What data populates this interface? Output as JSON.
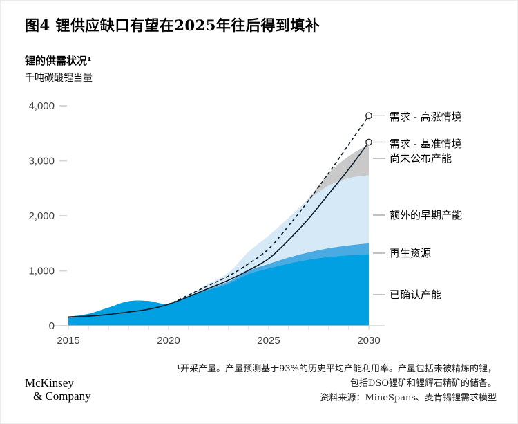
{
  "title": "图4 锂供应缺口有望在2025年往后得到填补",
  "subtitle": "锂的供需状况¹",
  "unit_label": "千吨碳酸锂当量",
  "chart_data": {
    "type": "area",
    "title": "锂的供需状况",
    "xlabel": "",
    "ylabel": "千吨碳酸锂当量",
    "xlim": [
      2015,
      2030
    ],
    "ylim": [
      0,
      4000
    ],
    "grid": false,
    "legend_position": "right",
    "x": [
      2015,
      2016,
      2017,
      2018,
      2019,
      2020,
      2021,
      2022,
      2023,
      2024,
      2025,
      2026,
      2027,
      2028,
      2029,
      2030
    ],
    "x_ticks": [
      2015,
      2020,
      2025,
      2030
    ],
    "y_ticks": [
      {
        "v": 0,
        "label": "0"
      },
      {
        "v": 1000,
        "label": "1,000"
      },
      {
        "v": 2000,
        "label": "2,000"
      },
      {
        "v": 3000,
        "label": "3,000"
      },
      {
        "v": 4000,
        "label": "4,000"
      }
    ],
    "series": [
      {
        "name": "已确认产能",
        "key": "confirmed-capacity",
        "type": "area",
        "color": "#00a0e2",
        "values": [
          165,
          215,
          330,
          445,
          450,
          395,
          530,
          650,
          765,
          940,
          1040,
          1130,
          1200,
          1250,
          1280,
          1300
        ]
      },
      {
        "name": "再生资源",
        "key": "recycled-resources",
        "type": "area",
        "color": "#4aabe2",
        "values": [
          0,
          0,
          0,
          0,
          0,
          0,
          5,
          20,
          40,
          60,
          85,
          110,
          135,
          160,
          180,
          200
        ]
      },
      {
        "name": "额外的早期产能",
        "key": "additional-early-capacity",
        "type": "area",
        "color": "#d5e9f7",
        "values": [
          0,
          0,
          0,
          0,
          0,
          5,
          25,
          95,
          160,
          345,
          510,
          725,
          955,
          1140,
          1225,
          1240
        ]
      },
      {
        "name": "尚未公布产能",
        "key": "unannounced-capacity",
        "type": "area",
        "color": "#c9c9c9",
        "values": [
          0,
          0,
          0,
          0,
          0,
          0,
          0,
          0,
          0,
          0,
          0,
          0,
          30,
          230,
          400,
          560
        ]
      },
      {
        "name": "需求 - 基准情境",
        "key": "demand-base",
        "type": "line",
        "dash": false,
        "color": "#0b1f2c",
        "marker_end": true,
        "values": [
          160,
          175,
          205,
          250,
          300,
          390,
          530,
          680,
          830,
          1010,
          1220,
          1560,
          1950,
          2400,
          2850,
          3340
        ]
      },
      {
        "name": "需求 - 高涨情境",
        "key": "demand-high",
        "type": "line",
        "dash": true,
        "color": "#0b1f2c",
        "marker_end": true,
        "values": [
          160,
          175,
          205,
          250,
          300,
          395,
          560,
          735,
          905,
          1130,
          1400,
          1820,
          2280,
          2780,
          3300,
          3820
        ]
      }
    ]
  },
  "legend": {
    "items": [
      {
        "label": "需求 - 高涨情境"
      },
      {
        "label": "需求 - 基准情境"
      },
      {
        "label": "尚未公布产能"
      },
      {
        "label": "额外的早期产能"
      },
      {
        "label": "再生资源"
      },
      {
        "label": "已确认产能"
      }
    ]
  },
  "footer": {
    "logo_line1": "McKinsey",
    "logo_line2": "& Company",
    "footnote_lines": [
      "¹开采产量。产量预测基于93%的历史平均产能利用率。产量包括未被精炼的锂，",
      "包括DSO锂矿和锂辉石精矿的储备。",
      "资料来源：MineSpans、麦肯锡锂需求模型"
    ]
  },
  "colors": {
    "confirmed": "#00a0e2",
    "recycled": "#4aabe2",
    "early": "#d5e9f7",
    "unannounced": "#c9c9c9",
    "demand_line": "#0b1f2c",
    "axis": "#cfcfcf",
    "tick_text": "#3d3d3d"
  }
}
